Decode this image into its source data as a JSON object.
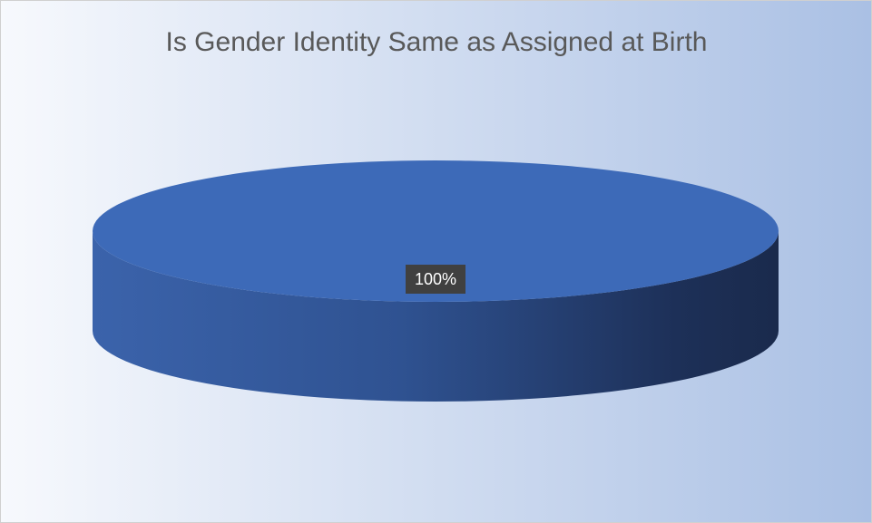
{
  "chart_data": {
    "type": "pie",
    "title": "Is Gender Identity Same as Assigned at Birth",
    "categories": [
      null
    ],
    "values": [
      100
    ],
    "value_labels": [
      "100%"
    ],
    "colors": [
      "#3d6ab8"
    ],
    "legend": false
  }
}
